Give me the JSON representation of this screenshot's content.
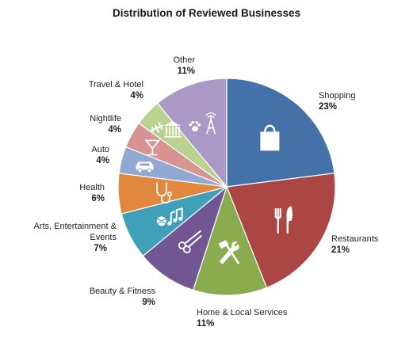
{
  "chart_data": {
    "type": "pie",
    "title": "Distribution of Reviewed Businesses",
    "slices": [
      {
        "label": "Shopping",
        "pct_label": "23%",
        "value": 23,
        "color": "#4472a8",
        "icon": "shopping-bag-icon"
      },
      {
        "label": "Restaurants",
        "pct_label": "21%",
        "value": 21,
        "color": "#ab4644",
        "icon": "fork-knife-icon"
      },
      {
        "label": "Home & Local Services",
        "pct_label": "11%",
        "value": 11,
        "color": "#8aab4e",
        "icon": "hammer-wrench-icon"
      },
      {
        "label": "Beauty & Fitness",
        "pct_label": "9%",
        "value": 9,
        "color": "#725694",
        "icon": "scissors-icon"
      },
      {
        "label": "Arts, Entertainment & Events",
        "pct_label": "7%",
        "value": 7,
        "color": "#3fa0b8",
        "icon": "music-ball-icon"
      },
      {
        "label": "Health",
        "pct_label": "6%",
        "value": 6,
        "color": "#e2873e",
        "icon": "stethoscope-icon"
      },
      {
        "label": "Auto",
        "pct_label": "4%",
        "value": 4,
        "color": "#91a8d2",
        "icon": "car-icon"
      },
      {
        "label": "Nightlife",
        "pct_label": "4%",
        "value": 4,
        "color": "#d89492",
        "icon": "cocktail-icon"
      },
      {
        "label": "Travel & Hotel",
        "pct_label": "4%",
        "value": 4,
        "color": "#b9d28f",
        "icon": "airplane-hotel-icon"
      },
      {
        "label": "Other",
        "pct_label": "11%",
        "value": 11,
        "color": "#a999c4",
        "icon": "paw-tower-icon"
      }
    ]
  }
}
